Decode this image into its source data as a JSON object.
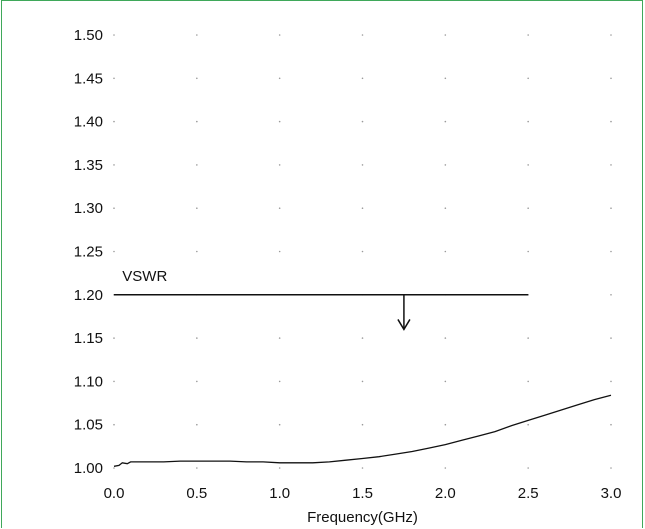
{
  "chart_data": {
    "type": "line",
    "title": "",
    "xlabel": "Frequency(GHz)",
    "ylabel": "",
    "xlim": [
      0.0,
      3.0
    ],
    "ylim": [
      1.0,
      1.5
    ],
    "x_ticks": [
      "0.0",
      "0.5",
      "1.0",
      "1.5",
      "2.0",
      "2.5",
      "3.0"
    ],
    "y_ticks": [
      "1.00",
      "1.05",
      "1.10",
      "1.15",
      "1.20",
      "1.25",
      "1.30",
      "1.35",
      "1.40",
      "1.45",
      "1.50"
    ],
    "grid": "dotted",
    "series": [
      {
        "x": [
          0.0,
          0.03,
          0.05,
          0.08,
          0.1,
          0.2,
          0.3,
          0.4,
          0.5,
          0.6,
          0.7,
          0.8,
          0.9,
          1.0,
          1.1,
          1.2,
          1.3,
          1.4,
          1.5,
          1.6,
          1.7,
          1.8,
          1.9,
          2.0,
          2.1,
          2.2,
          2.3,
          2.4,
          2.5,
          2.6,
          2.7,
          2.8,
          2.9,
          3.0
        ],
        "y": [
          1.002,
          1.003,
          1.006,
          1.005,
          1.007,
          1.007,
          1.007,
          1.008,
          1.008,
          1.008,
          1.008,
          1.007,
          1.007,
          1.006,
          1.006,
          1.006,
          1.007,
          1.009,
          1.011,
          1.013,
          1.016,
          1.019,
          1.023,
          1.027,
          1.032,
          1.037,
          1.042,
          1.049,
          1.055,
          1.061,
          1.067,
          1.073,
          1.079,
          1.084
        ]
      }
    ],
    "annotations": [
      {
        "text": "VSWR",
        "type": "limit-line",
        "y": 1.2,
        "x_range": [
          0.0,
          2.5
        ],
        "arrow_x": 1.75,
        "arrow_direction": "down"
      }
    ]
  },
  "colors": {
    "frame": "#3fa85a",
    "line": "#111111",
    "grid": "#9a9a9a"
  }
}
